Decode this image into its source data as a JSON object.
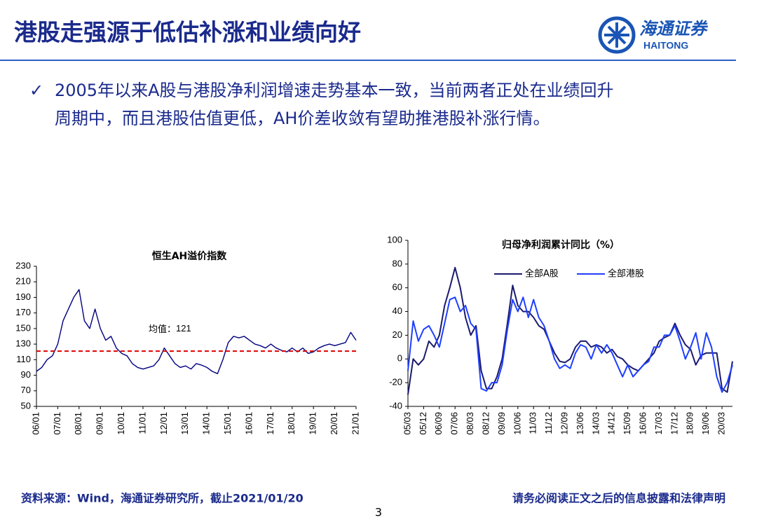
{
  "page": {
    "title": "港股走强源于低估补涨和业绩向好",
    "logo_cn": "海通证券",
    "logo_en": "HAITONG",
    "bullet_mark": "✓",
    "bullet_lines": [
      "2005年以来A股与港股净利润增速走势基本一致，当前两者正处在业绩回升",
      "周期中，而且港股估值更低，AH价差收敛有望助推港股补涨行情。"
    ],
    "source": "资料来源：Wind，海通证券研究所，截止2021/01/20",
    "disclaimer": "请务必阅读正文之后的信息披露和法律声明",
    "page_number": "3"
  },
  "chart_data": [
    {
      "type": "line",
      "title": "恒生AH溢价指数",
      "color": "#000080",
      "x": [
        "06/01",
        "06/04",
        "06/07",
        "06/10",
        "07/01",
        "07/04",
        "07/07",
        "07/10",
        "08/01",
        "08/04",
        "08/07",
        "08/10",
        "09/01",
        "09/04",
        "09/07",
        "09/10",
        "10/01",
        "10/04",
        "10/07",
        "10/10",
        "11/01",
        "11/04",
        "11/07",
        "11/10",
        "12/01",
        "12/04",
        "12/07",
        "12/10",
        "13/01",
        "13/04",
        "13/07",
        "13/10",
        "14/01",
        "14/04",
        "14/07",
        "14/10",
        "15/01",
        "15/04",
        "15/07",
        "15/10",
        "16/01",
        "16/04",
        "16/07",
        "16/10",
        "17/01",
        "17/04",
        "17/07",
        "17/10",
        "18/01",
        "18/04",
        "18/07",
        "18/10",
        "19/01",
        "19/04",
        "19/07",
        "19/10",
        "20/01",
        "20/04",
        "20/07",
        "20/10",
        "21/01"
      ],
      "values": [
        95,
        100,
        110,
        115,
        130,
        160,
        175,
        190,
        200,
        160,
        150,
        175,
        150,
        135,
        140,
        125,
        118,
        115,
        105,
        100,
        98,
        100,
        102,
        110,
        125,
        115,
        105,
        100,
        102,
        98,
        105,
        103,
        100,
        95,
        92,
        110,
        132,
        140,
        138,
        140,
        135,
        130,
        128,
        125,
        130,
        125,
        122,
        120,
        125,
        120,
        125,
        118,
        120,
        125,
        128,
        130,
        128,
        130,
        132,
        145,
        135
      ],
      "xticks": [
        "06/01",
        "07/01",
        "08/01",
        "09/01",
        "10/01",
        "11/01",
        "12/01",
        "13/01",
        "14/01",
        "15/01",
        "16/01",
        "17/01",
        "18/01",
        "19/01",
        "20/01",
        "21/01"
      ],
      "ylim": [
        50,
        230
      ],
      "yticks": [
        50,
        70,
        90,
        110,
        130,
        150,
        170,
        190,
        210,
        230
      ],
      "mean": 121,
      "mean_label": "均值：",
      "mean_color": "#e00000"
    },
    {
      "type": "line",
      "title": "归母净利润累计同比（%）",
      "legend": "top",
      "x": [
        "05/03",
        "05/06",
        "05/09",
        "05/12",
        "06/03",
        "06/06",
        "06/09",
        "06/12",
        "07/03",
        "07/06",
        "07/09",
        "07/12",
        "08/03",
        "08/06",
        "08/09",
        "08/12",
        "09/03",
        "09/06",
        "09/09",
        "09/12",
        "10/03",
        "10/06",
        "10/09",
        "10/12",
        "11/03",
        "11/06",
        "11/09",
        "11/12",
        "12/03",
        "12/06",
        "12/09",
        "12/12",
        "13/03",
        "13/06",
        "13/09",
        "13/12",
        "14/03",
        "14/06",
        "14/09",
        "14/12",
        "15/03",
        "15/06",
        "15/09",
        "15/12",
        "16/03",
        "16/06",
        "16/09",
        "16/12",
        "17/03",
        "17/06",
        "17/09",
        "17/12",
        "18/03",
        "18/06",
        "18/09",
        "18/12",
        "19/03",
        "19/06",
        "19/09",
        "19/12",
        "20/03",
        "20/06",
        "20/09"
      ],
      "series": [
        {
          "name": "全部A股",
          "color": "#1a1a6e",
          "values": [
            -30,
            0,
            -5,
            0,
            15,
            10,
            20,
            45,
            60,
            77,
            60,
            35,
            20,
            28,
            -10,
            -25,
            -25,
            -15,
            0,
            30,
            62,
            45,
            40,
            40,
            35,
            28,
            25,
            15,
            5,
            -2,
            -3,
            0,
            10,
            15,
            15,
            10,
            12,
            10,
            5,
            8,
            2,
            0,
            -5,
            -8,
            -10,
            -5,
            0,
            5,
            15,
            18,
            20,
            30,
            20,
            12,
            8,
            -5,
            3,
            5,
            5,
            5,
            -25,
            -28,
            -2
          ]
        },
        {
          "name": "全部港股",
          "color": "#1f3fff",
          "values": [
            -10,
            32,
            15,
            25,
            28,
            20,
            10,
            30,
            50,
            52,
            40,
            45,
            30,
            25,
            -25,
            -27,
            -20,
            -20,
            -5,
            25,
            50,
            40,
            52,
            35,
            50,
            35,
            28,
            15,
            0,
            -8,
            -5,
            -8,
            5,
            12,
            10,
            0,
            12,
            5,
            12,
            5,
            -5,
            -15,
            -5,
            -15,
            -10,
            -5,
            -2,
            10,
            10,
            20,
            20,
            28,
            15,
            0,
            10,
            22,
            0,
            22,
            10,
            -15,
            -28,
            -20,
            -5
          ]
        }
      ],
      "xticks": [
        "05/03",
        "05/12",
        "06/09",
        "07/06",
        "08/03",
        "08/12",
        "09/09",
        "10/06",
        "11/03",
        "11/12",
        "12/09",
        "13/06",
        "14/03",
        "14/12",
        "15/09",
        "16/06",
        "17/03",
        "17/12",
        "18/09",
        "19/06",
        "20/03"
      ],
      "ylim": [
        -40,
        100
      ],
      "yticks": [
        -40,
        -20,
        0,
        20,
        40,
        60,
        80,
        100
      ]
    }
  ]
}
